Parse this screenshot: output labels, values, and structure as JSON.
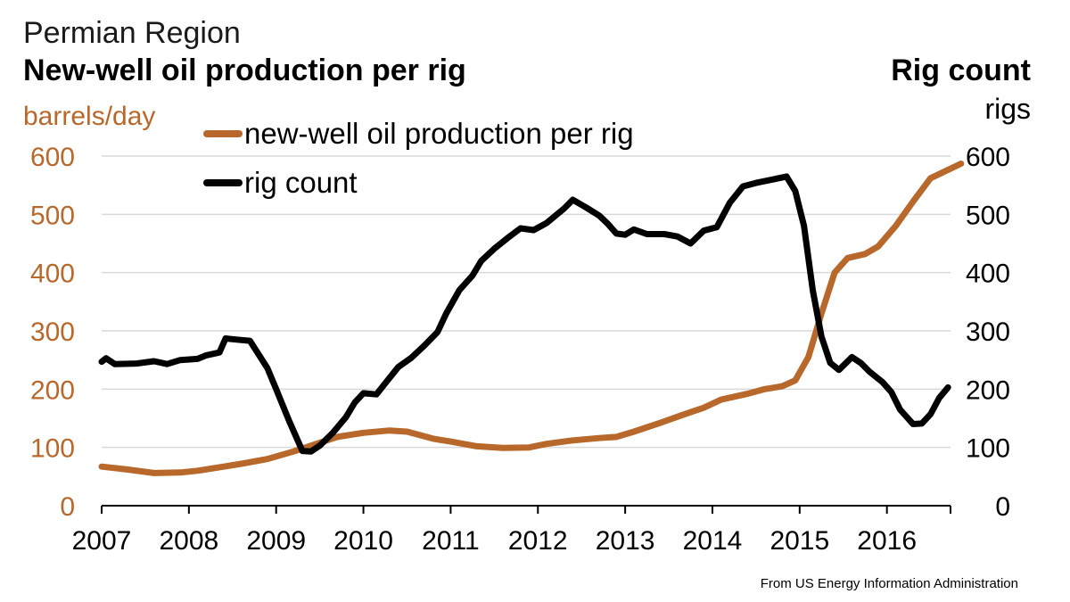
{
  "header": {
    "line1": "Permian Region",
    "line2": "New-well oil production per rig",
    "right_title": "Rig count",
    "left_unit": "barrels/day",
    "right_unit": "rigs"
  },
  "footer": {
    "source": "From US Energy Information Administration"
  },
  "colors": {
    "production": "#b8682a",
    "rigs": "#000000",
    "grid": "#d9d9d9",
    "left_axis_text": "#b8682a"
  },
  "chart_data": {
    "type": "line",
    "x_ticks": [
      "2007",
      "2008",
      "2009",
      "2010",
      "2011",
      "2012",
      "2013",
      "2014",
      "2015",
      "2016"
    ],
    "xlim": [
      2007.0,
      2016.85
    ],
    "left_axis": {
      "label": "barrels/day",
      "ylim": [
        0,
        600
      ],
      "ticks": [
        "0",
        "100",
        "200",
        "300",
        "400",
        "500",
        "600"
      ]
    },
    "right_axis": {
      "label": "rigs",
      "ylim": [
        0,
        600
      ],
      "ticks": [
        "0",
        "100",
        "200",
        "300",
        "400",
        "500",
        "600"
      ]
    },
    "grid": true,
    "legend": {
      "placement": "top-left"
    },
    "series": [
      {
        "name": "new-well oil production per rig",
        "axis": "left",
        "color": "#b8682a",
        "points": [
          [
            2007.0,
            67
          ],
          [
            2007.3,
            62
          ],
          [
            2007.6,
            56
          ],
          [
            2007.9,
            57
          ],
          [
            2008.1,
            60
          ],
          [
            2008.4,
            67
          ],
          [
            2008.6,
            72
          ],
          [
            2008.9,
            80
          ],
          [
            2009.2,
            93
          ],
          [
            2009.5,
            108
          ],
          [
            2009.7,
            118
          ],
          [
            2010.0,
            125
          ],
          [
            2010.3,
            129
          ],
          [
            2010.5,
            127
          ],
          [
            2010.8,
            115
          ],
          [
            2011.0,
            110
          ],
          [
            2011.3,
            102
          ],
          [
            2011.6,
            99
          ],
          [
            2011.9,
            100
          ],
          [
            2012.1,
            106
          ],
          [
            2012.4,
            112
          ],
          [
            2012.7,
            116
          ],
          [
            2012.9,
            118
          ],
          [
            2013.1,
            127
          ],
          [
            2013.4,
            142
          ],
          [
            2013.7,
            158
          ],
          [
            2013.9,
            168
          ],
          [
            2014.1,
            182
          ],
          [
            2014.4,
            192
          ],
          [
            2014.6,
            200
          ],
          [
            2014.8,
            205
          ],
          [
            2014.95,
            215
          ],
          [
            2015.1,
            255
          ],
          [
            2015.25,
            330
          ],
          [
            2015.4,
            400
          ],
          [
            2015.55,
            425
          ],
          [
            2015.75,
            432
          ],
          [
            2015.9,
            445
          ],
          [
            2016.1,
            480
          ],
          [
            2016.3,
            522
          ],
          [
            2016.5,
            562
          ],
          [
            2016.85,
            587
          ]
        ]
      },
      {
        "name": "rig count",
        "axis": "right",
        "color": "#000000",
        "points": [
          [
            2007.0,
            247
          ],
          [
            2007.05,
            253
          ],
          [
            2007.15,
            243
          ],
          [
            2007.4,
            244
          ],
          [
            2007.6,
            248
          ],
          [
            2007.75,
            243
          ],
          [
            2007.9,
            250
          ],
          [
            2008.1,
            252
          ],
          [
            2008.2,
            258
          ],
          [
            2008.35,
            263
          ],
          [
            2008.42,
            287
          ],
          [
            2008.55,
            285
          ],
          [
            2008.7,
            283
          ],
          [
            2008.9,
            236
          ],
          [
            2009.0,
            200
          ],
          [
            2009.15,
            145
          ],
          [
            2009.3,
            94
          ],
          [
            2009.4,
            93
          ],
          [
            2009.5,
            103
          ],
          [
            2009.65,
            125
          ],
          [
            2009.8,
            152
          ],
          [
            2009.9,
            177
          ],
          [
            2010.0,
            193
          ],
          [
            2010.15,
            191
          ],
          [
            2010.25,
            210
          ],
          [
            2010.4,
            238
          ],
          [
            2010.55,
            254
          ],
          [
            2010.7,
            275
          ],
          [
            2010.85,
            298
          ],
          [
            2010.95,
            330
          ],
          [
            2011.1,
            370
          ],
          [
            2011.25,
            395
          ],
          [
            2011.35,
            420
          ],
          [
            2011.5,
            441
          ],
          [
            2011.65,
            459
          ],
          [
            2011.8,
            476
          ],
          [
            2011.95,
            473
          ],
          [
            2012.1,
            485
          ],
          [
            2012.3,
            510
          ],
          [
            2012.4,
            525
          ],
          [
            2012.55,
            512
          ],
          [
            2012.7,
            498
          ],
          [
            2012.8,
            484
          ],
          [
            2012.9,
            467
          ],
          [
            2013.0,
            465
          ],
          [
            2013.1,
            474
          ],
          [
            2013.25,
            466
          ],
          [
            2013.45,
            466
          ],
          [
            2013.6,
            462
          ],
          [
            2013.75,
            450
          ],
          [
            2013.9,
            472
          ],
          [
            2014.05,
            478
          ],
          [
            2014.2,
            520
          ],
          [
            2014.35,
            548
          ],
          [
            2014.5,
            554
          ],
          [
            2014.7,
            560
          ],
          [
            2014.85,
            565
          ],
          [
            2014.95,
            540
          ],
          [
            2015.05,
            480
          ],
          [
            2015.15,
            370
          ],
          [
            2015.25,
            290
          ],
          [
            2015.35,
            245
          ],
          [
            2015.45,
            233
          ],
          [
            2015.6,
            255
          ],
          [
            2015.7,
            245
          ],
          [
            2015.8,
            230
          ],
          [
            2015.95,
            212
          ],
          [
            2016.05,
            195
          ],
          [
            2016.15,
            165
          ],
          [
            2016.3,
            140
          ],
          [
            2016.4,
            141
          ],
          [
            2016.5,
            157
          ],
          [
            2016.6,
            185
          ],
          [
            2016.7,
            203
          ]
        ]
      }
    ]
  }
}
